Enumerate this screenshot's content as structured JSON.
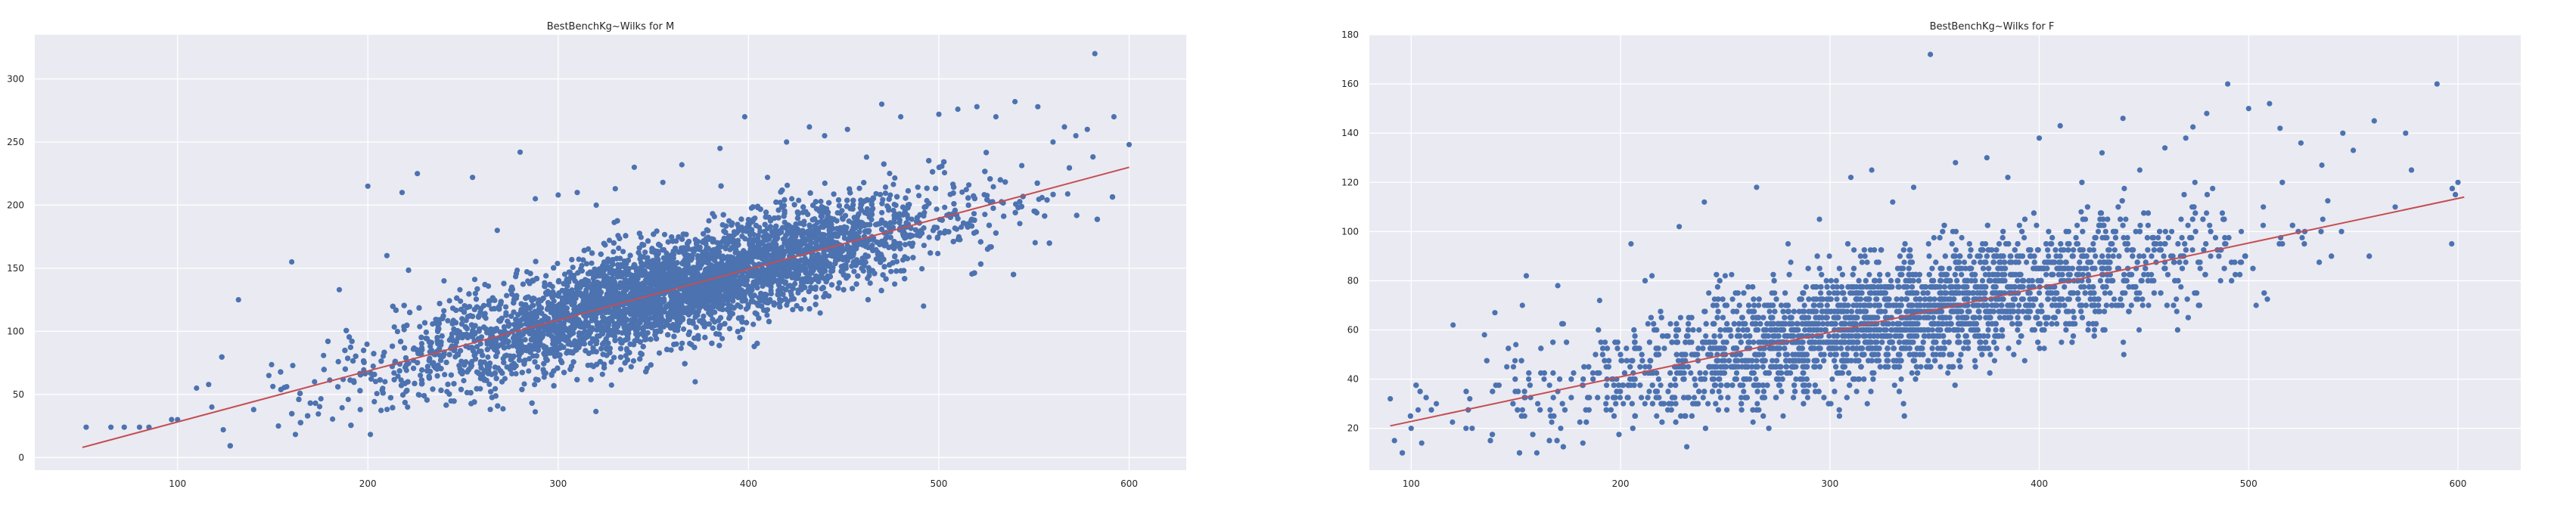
{
  "chart_data": [
    {
      "type": "scatter",
      "title": "BestBenchKg~Wilks for M",
      "xlabel": "",
      "ylabel": "",
      "xlim": [
        25,
        630
      ],
      "ylim": [
        -10,
        335
      ],
      "xticks": [
        100,
        200,
        300,
        400,
        500,
        600
      ],
      "yticks": [
        0,
        50,
        100,
        150,
        200,
        250,
        300
      ],
      "grid": true,
      "point_color": "#4c72b0",
      "line_color": "#c44e52",
      "regression_line": {
        "x": [
          50,
          600
        ],
        "y": [
          8,
          230
        ]
      },
      "core_cloud": {
        "x_range": [
          240,
          510
        ],
        "y_at_x300": 118,
        "y_at_x450": 165
      },
      "sample_points": {
        "x": [
          52,
          65,
          72,
          80,
          85,
          100,
          110,
          118,
          124,
          132,
          140,
          148,
          153,
          160,
          172,
          185,
          196,
          200,
          210,
          218,
          226,
          240,
          255,
          268,
          280,
          288,
          300,
          310,
          320,
          330,
          340,
          355,
          365,
          372,
          385,
          398,
          410,
          420,
          432,
          440,
          452,
          462,
          470,
          480,
          492,
          500,
          510,
          520,
          530,
          540,
          552,
          560,
          566,
          572,
          578,
          582,
          592,
          600
        ],
        "y": [
          24,
          24,
          24,
          24,
          24,
          30,
          55,
          40,
          22,
          125,
          38,
          65,
          25,
          155,
          60,
          133,
          38,
          215,
          160,
          210,
          225,
          140,
          222,
          180,
          242,
          205,
          208,
          210,
          200,
          213,
          230,
          218,
          232,
          60,
          245,
          270,
          222,
          250,
          262,
          255,
          260,
          238,
          280,
          270,
          120,
          272,
          276,
          278,
          270,
          282,
          278,
          250,
          262,
          255,
          260,
          320,
          270,
          248
        ]
      }
    },
    {
      "type": "scatter",
      "title": "BestBenchKg~Wilks for F",
      "xlabel": "",
      "ylabel": "",
      "xlim": [
        80,
        630
      ],
      "ylim": [
        3,
        180
      ],
      "xticks": [
        100,
        200,
        300,
        400,
        500,
        600
      ],
      "yticks": [
        20,
        40,
        60,
        80,
        100,
        120,
        140,
        160,
        180
      ],
      "grid": true,
      "point_color": "#4c72b0",
      "line_color": "#c44e52",
      "regression_line": {
        "x": [
          90,
          603
        ],
        "y": [
          21,
          114
        ]
      },
      "core_cloud": {
        "x_range": [
          170,
          470
        ],
        "y_at_x200": 42,
        "y_at_x400": 78
      },
      "sample_points": {
        "x": [
          90,
          92,
          100,
          105,
          112,
          120,
          128,
          135,
          140,
          150,
          155,
          160,
          170,
          182,
          190,
          205,
          215,
          228,
          240,
          250,
          265,
          280,
          295,
          310,
          320,
          330,
          340,
          348,
          360,
          375,
          385,
          400,
          410,
          420,
          430,
          440,
          448,
          460,
          470,
          480,
          490,
          500,
          510,
          515,
          525,
          535,
          545,
          550,
          560,
          570,
          575,
          590,
          597,
          600
        ],
        "y": [
          32,
          15,
          20,
          14,
          30,
          62,
          32,
          58,
          67,
          54,
          82,
          10,
          78,
          14,
          72,
          95,
          82,
          102,
          112,
          82,
          118,
          95,
          105,
          122,
          125,
          112,
          118,
          172,
          128,
          130,
          122,
          138,
          143,
          108,
          132,
          146,
          125,
          134,
          138,
          148,
          160,
          150,
          152,
          142,
          136,
          127,
          140,
          133,
          145,
          110,
          140,
          160,
          95,
          120
        ]
      }
    }
  ]
}
